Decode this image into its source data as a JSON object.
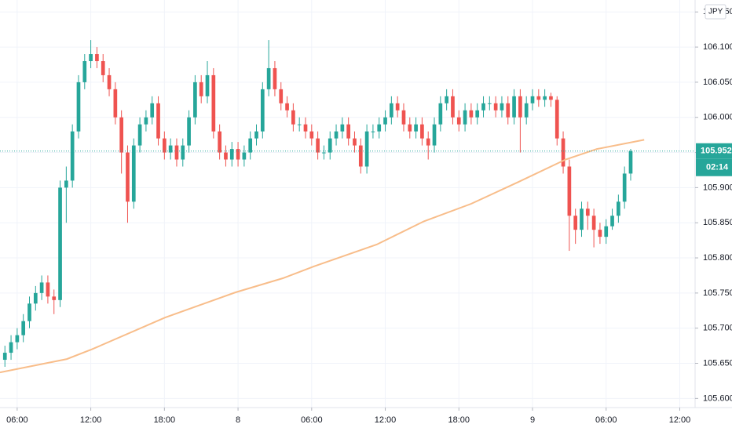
{
  "chart_data": {
    "type": "candlestick",
    "up_color": "#26a69a",
    "down_color": "#ef5350",
    "open": [
      105.655,
      105.665,
      105.68,
      105.69,
      105.71,
      105.735,
      105.75,
      105.765,
      105.745,
      105.74,
      105.9,
      105.91,
      105.98,
      106.05,
      106.08,
      106.09,
      106.08,
      106.06,
      106.04,
      106.0,
      105.95,
      105.88,
      105.96,
      105.99,
      106.0,
      106.02,
      105.97,
      105.95,
      105.96,
      105.94,
      105.96,
      106.0,
      106.05,
      106.03,
      106.06,
      105.98,
      105.95,
      105.94,
      105.955,
      105.94,
      105.95,
      105.97,
      105.98,
      106.04,
      106.07,
      106.04,
      106.02,
      106.01,
      105.99,
      105.99,
      105.98,
      105.97,
      105.95,
      105.95,
      105.97,
      105.98,
      105.99,
      105.97,
      105.96,
      105.93,
      105.98,
      105.98,
      105.99,
      106.0,
      106.02,
      106.01,
      105.99,
      105.98,
      105.99,
      105.97,
      105.96,
      105.99,
      106.02,
      106.03,
      106.0,
      105.99,
      106.01,
      106.0,
      106.01,
      106.02,
      106.02,
      106.01,
      106.02,
      106.0,
      106.03,
      106.0,
      106.02,
      106.03,
      106.025,
      106.03,
      106.025,
      105.97,
      105.93,
      105.86,
      105.84,
      105.87,
      105.86,
      105.84,
      105.83,
      105.845,
      105.86,
      105.88,
      105.92
    ],
    "high": [
      105.675,
      105.69,
      105.7,
      105.72,
      105.745,
      105.76,
      105.775,
      105.775,
      105.755,
      105.91,
      105.93,
      105.99,
      106.06,
      106.09,
      106.11,
      106.1,
      106.09,
      106.07,
      106.05,
      106.01,
      105.96,
      105.97,
      106.0,
      106.01,
      106.03,
      106.03,
      105.98,
      105.97,
      105.97,
      105.97,
      106.01,
      106.06,
      106.06,
      106.08,
      106.07,
      105.99,
      105.96,
      105.965,
      105.965,
      105.96,
      105.98,
      105.99,
      106.05,
      106.11,
      106.08,
      106.05,
      106.03,
      106.02,
      106.0,
      106.0,
      105.99,
      105.98,
      105.96,
      105.98,
      105.99,
      106.0,
      106.0,
      105.98,
      105.97,
      105.99,
      105.99,
      106.0,
      106.01,
      106.03,
      106.03,
      106.02,
      106.0,
      106.0,
      106.0,
      105.98,
      106.0,
      106.03,
      106.04,
      106.04,
      106.01,
      106.02,
      106.02,
      106.02,
      106.03,
      106.03,
      106.03,
      106.03,
      106.03,
      106.04,
      106.04,
      106.03,
      106.04,
      106.04,
      106.04,
      106.035,
      106.03,
      105.98,
      105.94,
      105.87,
      105.88,
      105.88,
      105.87,
      105.85,
      105.855,
      105.87,
      105.89,
      105.93,
      105.955
    ],
    "low": [
      105.645,
      105.655,
      105.67,
      105.68,
      105.7,
      105.725,
      105.74,
      105.735,
      105.72,
      105.73,
      105.85,
      105.9,
      105.97,
      106.04,
      106.07,
      106.07,
      106.05,
      106.03,
      105.99,
      105.92,
      105.85,
      105.87,
      105.95,
      105.98,
      105.99,
      105.96,
      105.94,
      105.94,
      105.93,
      105.93,
      105.95,
      105.99,
      106.02,
      106.02,
      105.97,
      105.94,
      105.93,
      105.93,
      105.93,
      105.93,
      105.94,
      105.96,
      105.97,
      106.03,
      106.03,
      106.01,
      106.0,
      105.98,
      105.98,
      105.97,
      105.96,
      105.94,
      105.94,
      105.94,
      105.96,
      105.97,
      105.96,
      105.95,
      105.92,
      105.92,
      105.97,
      105.97,
      105.98,
      105.99,
      106.0,
      105.98,
      105.97,
      105.97,
      105.96,
      105.94,
      105.95,
      105.98,
      106.01,
      105.99,
      105.98,
      105.98,
      105.99,
      105.99,
      106.0,
      106.01,
      106.0,
      106.0,
      105.99,
      105.99,
      105.95,
      105.99,
      106.01,
      106.015,
      106.015,
      106.015,
      105.96,
      105.92,
      105.81,
      105.82,
      105.83,
      105.84,
      105.815,
      105.82,
      105.82,
      105.84,
      105.85,
      105.87,
      105.91
    ],
    "close": [
      105.665,
      105.68,
      105.69,
      105.71,
      105.735,
      105.75,
      105.765,
      105.745,
      105.74,
      105.9,
      105.91,
      105.98,
      106.05,
      106.08,
      106.09,
      106.08,
      106.06,
      106.04,
      106.0,
      105.95,
      105.88,
      105.96,
      105.99,
      106.0,
      106.02,
      105.97,
      105.95,
      105.96,
      105.94,
      105.96,
      106.0,
      106.05,
      106.03,
      106.06,
      105.98,
      105.95,
      105.94,
      105.955,
      105.94,
      105.95,
      105.97,
      105.98,
      106.04,
      106.07,
      106.04,
      106.02,
      106.01,
      105.99,
      105.99,
      105.98,
      105.97,
      105.95,
      105.95,
      105.97,
      105.98,
      105.99,
      105.97,
      105.96,
      105.93,
      105.98,
      105.98,
      105.99,
      106.0,
      106.02,
      106.01,
      105.99,
      105.98,
      105.99,
      105.97,
      105.96,
      105.99,
      106.02,
      106.03,
      106.0,
      105.99,
      106.01,
      106.0,
      106.01,
      106.02,
      106.02,
      106.01,
      106.02,
      106.0,
      106.03,
      106.0,
      106.02,
      106.03,
      106.025,
      106.03,
      106.025,
      105.97,
      105.93,
      105.86,
      105.84,
      105.87,
      105.86,
      105.84,
      105.83,
      105.845,
      105.86,
      105.88,
      105.92,
      105.952
    ],
    "moving_average": {
      "color": "#f8bd8a",
      "x": [
        -0.8,
        10.1,
        14.2,
        26.1,
        37.6,
        45.3,
        50.4,
        60.6,
        68.3,
        76.0,
        83.7,
        91.4,
        96.5,
        104.2
      ],
      "values": [
        105.637,
        105.656,
        105.67,
        105.715,
        105.751,
        105.771,
        105.788,
        105.819,
        105.852,
        105.877,
        105.908,
        105.94,
        105.955,
        105.968
      ]
    },
    "xlim": [
      -0.8,
      112.5
    ],
    "ylim": [
      105.587,
      106.167
    ],
    "xticks": [
      {
        "value": 2,
        "label": "06:00"
      },
      {
        "value": 14,
        "label": "12:00"
      },
      {
        "value": 26,
        "label": "18:00"
      },
      {
        "value": 38,
        "label": "8"
      },
      {
        "value": 50,
        "label": "06:00"
      },
      {
        "value": 62,
        "label": "12:00"
      },
      {
        "value": 74,
        "label": "18:00"
      },
      {
        "value": 86,
        "label": "9"
      },
      {
        "value": 98,
        "label": "06:00"
      },
      {
        "value": 110,
        "label": "12:00"
      }
    ],
    "yticks": [
      {
        "value": 105.6,
        "label": "105.600"
      },
      {
        "value": 105.65,
        "label": "105.650"
      },
      {
        "value": 105.7,
        "label": "105.700"
      },
      {
        "value": 105.75,
        "label": "105.750"
      },
      {
        "value": 105.8,
        "label": "105.800"
      },
      {
        "value": 105.85,
        "label": "105.850"
      },
      {
        "value": 105.9,
        "label": "105.900"
      },
      {
        "value": 105.95,
        "label": "105.950"
      },
      {
        "value": 106.0,
        "label": "106.000"
      },
      {
        "value": 106.05,
        "label": "106.050"
      },
      {
        "value": 106.1,
        "label": "106.100"
      },
      {
        "value": 106.15,
        "label": "106.150"
      }
    ],
    "grid": true,
    "last_price": 105.952,
    "countdown": "02:14",
    "currency": "JPY",
    "price_line_color": "#26a69a"
  }
}
